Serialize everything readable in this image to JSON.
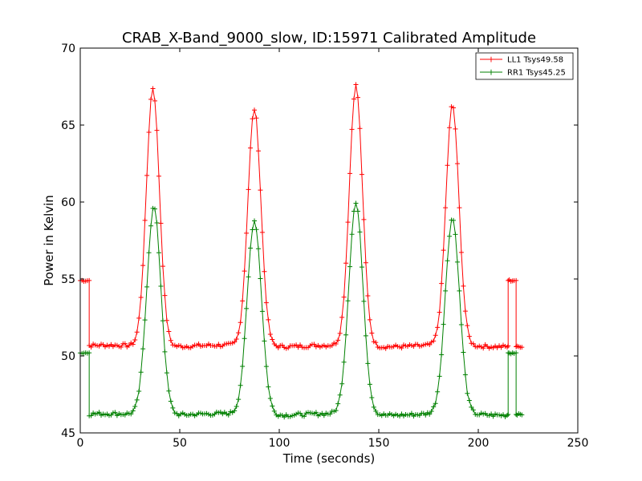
{
  "chart_data": {
    "type": "line",
    "title": "CRAB_X-Band_9000_slow, ID:15971 Calibrated Amplitude",
    "xlabel": "Time (seconds)",
    "ylabel": "Power in Kelvin",
    "xlim": [
      0,
      250
    ],
    "ylim": [
      45,
      70
    ],
    "xticks": [
      0,
      50,
      100,
      150,
      200,
      250
    ],
    "yticks": [
      45,
      50,
      55,
      60,
      65,
      70
    ],
    "grid": false,
    "legend_position": "top-right",
    "marker": "+",
    "series": [
      {
        "name": "LL1 Tsys49.58",
        "color": "#ff0000",
        "baseline": 50.65,
        "edge_level": 54.9,
        "low_edge_level": 50.6,
        "peaks": [
          {
            "t": 36.5,
            "height": 16.8,
            "width": 3.3
          },
          {
            "t": 87.5,
            "height": 15.4,
            "width": 3.3
          },
          {
            "t": 138.5,
            "height": 16.9,
            "width": 3.3
          },
          {
            "t": 187,
            "height": 15.6,
            "width": 3.3
          }
        ]
      },
      {
        "name": "RR1 Tsys45.25",
        "color": "#008000",
        "baseline": 46.2,
        "edge_level": 50.2,
        "low_edge_level": 46.2,
        "peaks": [
          {
            "t": 37,
            "height": 13.5,
            "width": 3.6
          },
          {
            "t": 87.5,
            "height": 12.6,
            "width": 3.6
          },
          {
            "t": 138.5,
            "height": 13.7,
            "width": 3.6
          },
          {
            "t": 187,
            "height": 12.7,
            "width": 3.6
          }
        ]
      }
    ]
  }
}
